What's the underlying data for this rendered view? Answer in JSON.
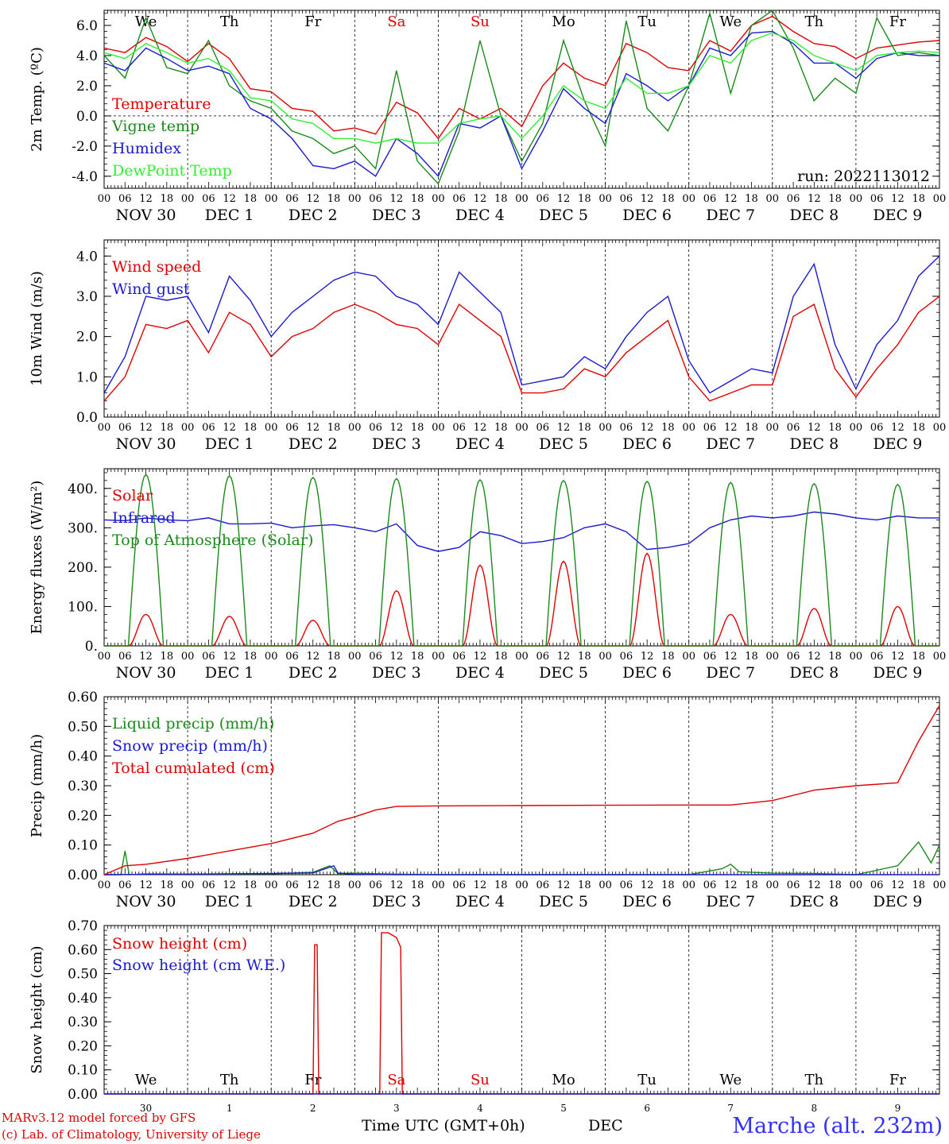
{
  "footer": {
    "model": "MARv3.12 model forced by GFS",
    "credit": "(c) Lab. of Climatology, University of Liege",
    "time_label": "Time UTC (GMT+0h)",
    "month_label": "DEC",
    "station": "Marche (alt. 232m)"
  },
  "axis_common": {
    "hour_ticks": [
      "00",
      "06",
      "12",
      "18"
    ],
    "date_labels": [
      "NOV 30",
      "DEC  1",
      "DEC  2",
      "DEC  3",
      "DEC  4",
      "DEC  5",
      "DEC  6",
      "DEC  7",
      "DEC  8",
      "DEC  9"
    ],
    "weekdays": [
      "We",
      "Th",
      "Fr",
      "Sa",
      "Su",
      "Mo",
      "Tu",
      "We",
      "Th",
      "Fr"
    ],
    "weekday_colors": [
      "#000000",
      "#000000",
      "#000000",
      "#e00000",
      "#e00000",
      "#000000",
      "#000000",
      "#000000",
      "#000000",
      "#000000"
    ],
    "day_numbers": [
      "30",
      "1",
      "2",
      "3",
      "4",
      "5",
      "6",
      "7",
      "8",
      "9"
    ],
    "days": 10
  },
  "chart_data": [
    {
      "id": "temperature",
      "type": "line",
      "ylabel": "2m Temp. (ºC)",
      "ylim": [
        -4.8,
        7.0
      ],
      "yticks": [
        -4.0,
        -2.0,
        0.0,
        2.0,
        4.0,
        6.0
      ],
      "ytick_labels": [
        "-4.0",
        "-2.0",
        "0.0",
        "2.0",
        "4.0",
        "6.0"
      ],
      "zero_line": true,
      "annotation": "run: 2022113012",
      "series": [
        {
          "name": "Temperature",
          "color": "#e00000",
          "x": [
            0,
            0.25,
            0.5,
            0.75,
            1,
            1.25,
            1.5,
            1.75,
            2,
            2.25,
            2.5,
            2.75,
            3,
            3.25,
            3.5,
            3.75,
            4,
            4.25,
            4.5,
            4.75,
            5,
            5.25,
            5.5,
            5.75,
            6,
            6.25,
            6.5,
            6.75,
            7,
            7.25,
            7.5,
            7.75,
            8,
            8.25,
            8.5,
            8.75,
            9,
            9.25,
            9.5,
            9.75,
            10
          ],
          "values": [
            4.5,
            4.2,
            5.2,
            4.6,
            3.6,
            4.8,
            3.8,
            1.8,
            1.6,
            0.5,
            0.3,
            -1.0,
            -0.8,
            -1.2,
            0.9,
            0.2,
            -1.5,
            0.5,
            -0.2,
            0.5,
            -0.7,
            2.0,
            3.5,
            2.5,
            2.0,
            4.8,
            4.2,
            3.2,
            3.0,
            5.0,
            4.3,
            6.0,
            6.6,
            5.6,
            4.8,
            4.6,
            3.8,
            4.5,
            4.7,
            4.9,
            5.0
          ]
        },
        {
          "name": "Vigne temp",
          "color": "#1a8a1a",
          "x": [
            0,
            0.25,
            0.5,
            0.75,
            1,
            1.25,
            1.5,
            1.75,
            2,
            2.25,
            2.5,
            2.75,
            3,
            3.25,
            3.5,
            3.75,
            4,
            4.25,
            4.5,
            4.75,
            5,
            5.25,
            5.5,
            5.75,
            6,
            6.25,
            6.5,
            6.75,
            7,
            7.25,
            7.5,
            7.75,
            8,
            8.25,
            8.5,
            8.75,
            9,
            9.25,
            9.5,
            9.75,
            10
          ],
          "values": [
            4.0,
            2.5,
            6.5,
            3.2,
            2.8,
            5.0,
            2.0,
            1.0,
            0.5,
            -1.0,
            -1.5,
            -2.5,
            -2.0,
            -3.5,
            3.0,
            -3.0,
            -4.5,
            -1.0,
            5.0,
            0.0,
            -3.0,
            -0.5,
            5.0,
            1.0,
            -2.0,
            6.3,
            0.5,
            -1.0,
            2.0,
            6.8,
            1.5,
            6.0,
            7.0,
            4.5,
            1.0,
            2.5,
            1.5,
            6.5,
            4.0,
            4.2,
            4.0
          ]
        },
        {
          "name": "Humidex",
          "color": "#1a1ad0",
          "x": [
            0,
            0.25,
            0.5,
            0.75,
            1,
            1.25,
            1.5,
            1.75,
            2,
            2.25,
            2.5,
            2.75,
            3,
            3.25,
            3.5,
            3.75,
            4,
            4.25,
            4.5,
            4.75,
            5,
            5.25,
            5.5,
            5.75,
            6,
            6.25,
            6.5,
            6.75,
            7,
            7.25,
            7.5,
            7.75,
            8,
            8.25,
            8.5,
            8.75,
            9,
            9.25,
            9.5,
            9.75,
            10
          ],
          "values": [
            3.5,
            3.0,
            4.5,
            3.8,
            3.0,
            3.3,
            2.8,
            0.5,
            -0.2,
            -1.5,
            -3.3,
            -3.5,
            -3.0,
            -4.0,
            -1.5,
            -2.5,
            -4.0,
            -0.5,
            -0.8,
            0.0,
            -3.5,
            -1.0,
            1.8,
            0.5,
            -0.5,
            2.8,
            2.0,
            1.0,
            2.0,
            4.5,
            4.0,
            5.5,
            5.6,
            4.8,
            3.5,
            3.5,
            2.5,
            3.8,
            4.2,
            4.0,
            4.0
          ]
        },
        {
          "name": "DewPoint Temp",
          "color": "#33ee33",
          "x": [
            0,
            0.25,
            0.5,
            0.75,
            1,
            1.25,
            1.5,
            1.75,
            2,
            2.25,
            2.5,
            2.75,
            3,
            3.25,
            3.5,
            3.75,
            4,
            4.25,
            4.5,
            4.75,
            5,
            5.25,
            5.5,
            5.75,
            6,
            6.25,
            6.5,
            6.75,
            7,
            7.25,
            7.5,
            7.75,
            8,
            8.25,
            8.5,
            8.75,
            9,
            9.25,
            9.5,
            9.75,
            10
          ],
          "values": [
            4.2,
            3.8,
            4.8,
            4.2,
            3.5,
            3.8,
            3.0,
            1.2,
            1.0,
            -0.2,
            -0.5,
            -1.5,
            -1.5,
            -1.8,
            -1.5,
            -1.8,
            -1.8,
            -0.5,
            -0.2,
            0.0,
            -1.5,
            0.0,
            2.0,
            1.0,
            0.5,
            2.5,
            1.5,
            1.5,
            2.0,
            4.0,
            3.5,
            5.0,
            5.5,
            5.0,
            4.0,
            3.5,
            3.0,
            4.0,
            4.2,
            4.3,
            4.2
          ]
        }
      ]
    },
    {
      "id": "wind",
      "type": "line",
      "ylabel": "10m Wind (m/s)",
      "ylim": [
        0.0,
        4.4
      ],
      "yticks": [
        0.0,
        1.0,
        2.0,
        3.0,
        4.0
      ],
      "ytick_labels": [
        "0.0",
        "1.0",
        "2.0",
        "3.0",
        "4.0"
      ],
      "series": [
        {
          "name": "Wind speed",
          "color": "#e00000",
          "x": [
            0,
            0.25,
            0.5,
            0.75,
            1,
            1.25,
            1.5,
            1.75,
            2,
            2.25,
            2.5,
            2.75,
            3,
            3.25,
            3.5,
            3.75,
            4,
            4.25,
            4.5,
            4.75,
            5,
            5.25,
            5.5,
            5.75,
            6,
            6.25,
            6.5,
            6.75,
            7,
            7.25,
            7.5,
            7.75,
            8,
            8.25,
            8.5,
            8.75,
            9,
            9.25,
            9.5,
            9.75,
            10
          ],
          "values": [
            0.4,
            1.0,
            2.3,
            2.2,
            2.4,
            1.6,
            2.6,
            2.3,
            1.5,
            2.0,
            2.2,
            2.6,
            2.8,
            2.6,
            2.3,
            2.2,
            1.8,
            2.8,
            2.4,
            2.0,
            0.6,
            0.6,
            0.7,
            1.2,
            1.0,
            1.6,
            2.0,
            2.4,
            1.0,
            0.4,
            0.6,
            0.8,
            0.8,
            2.5,
            2.8,
            1.2,
            0.5,
            1.2,
            1.8,
            2.6,
            3.0
          ]
        },
        {
          "name": "Wind gust",
          "color": "#1a1ad0",
          "x": [
            0,
            0.25,
            0.5,
            0.75,
            1,
            1.25,
            1.5,
            1.75,
            2,
            2.25,
            2.5,
            2.75,
            3,
            3.25,
            3.5,
            3.75,
            4,
            4.25,
            4.5,
            4.75,
            5,
            5.25,
            5.5,
            5.75,
            6,
            6.25,
            6.5,
            6.75,
            7,
            7.25,
            7.5,
            7.75,
            8,
            8.25,
            8.5,
            8.75,
            9,
            9.25,
            9.5,
            9.75,
            10
          ],
          "values": [
            0.6,
            1.5,
            3.0,
            2.9,
            3.0,
            2.1,
            3.5,
            2.9,
            2.0,
            2.6,
            3.0,
            3.4,
            3.6,
            3.5,
            3.0,
            2.8,
            2.3,
            3.6,
            3.1,
            2.6,
            0.8,
            0.9,
            1.0,
            1.5,
            1.2,
            2.0,
            2.6,
            3.0,
            1.4,
            0.6,
            0.9,
            1.2,
            1.1,
            3.0,
            3.8,
            1.8,
            0.7,
            1.8,
            2.4,
            3.5,
            4.0
          ]
        }
      ]
    },
    {
      "id": "energy",
      "type": "line",
      "ylabel": "Energy fluxes (W/m²)",
      "ylim": [
        0,
        450
      ],
      "yticks": [
        0,
        100,
        200,
        300,
        400
      ],
      "ytick_labels": [
        "0.",
        "100.",
        "200.",
        "300.",
        "400."
      ],
      "series": [
        {
          "name": "Solar",
          "color": "#e00000",
          "day_peaks": [
            80,
            75,
            65,
            140,
            205,
            215,
            235,
            80,
            95,
            100
          ]
        },
        {
          "name": "Infrared",
          "color": "#1a1ad0",
          "x": [
            0,
            0.25,
            0.5,
            0.75,
            1,
            1.25,
            1.5,
            1.75,
            2,
            2.25,
            2.5,
            2.75,
            3,
            3.25,
            3.5,
            3.75,
            4,
            4.25,
            4.5,
            4.75,
            5,
            5.25,
            5.5,
            5.75,
            6,
            6.25,
            6.5,
            6.75,
            7,
            7.25,
            7.5,
            7.75,
            8,
            8.25,
            8.5,
            8.75,
            9,
            9.25,
            9.5,
            9.75,
            10
          ],
          "values": [
            320,
            318,
            325,
            320,
            318,
            325,
            310,
            310,
            312,
            300,
            305,
            308,
            300,
            290,
            310,
            255,
            240,
            250,
            290,
            280,
            260,
            265,
            275,
            300,
            310,
            290,
            245,
            250,
            260,
            300,
            320,
            330,
            325,
            330,
            340,
            335,
            325,
            320,
            330,
            325,
            325
          ]
        },
        {
          "name": "Top of Atmosphere (Solar)",
          "color": "#1a8a1a",
          "day_peaks": [
            435,
            432,
            428,
            425,
            422,
            420,
            418,
            415,
            412,
            410
          ]
        }
      ]
    },
    {
      "id": "precip",
      "type": "line",
      "ylabel": "Precip (mm/h)",
      "ylim": [
        0.0,
        0.6
      ],
      "yticks": [
        0.0,
        0.1,
        0.2,
        0.3,
        0.4,
        0.5,
        0.6
      ],
      "ytick_labels": [
        "0.00",
        "0.10",
        "0.20",
        "0.30",
        "0.40",
        "0.50",
        "0.60"
      ],
      "series": [
        {
          "name": "Liquid precip (mm/h)",
          "color": "#1a8a1a",
          "x": [
            0,
            0.2,
            0.25,
            0.3,
            0.5,
            1,
            1.5,
            2,
            2.5,
            2.7,
            2.8,
            3,
            3.5,
            4,
            5,
            6,
            7,
            7.4,
            7.5,
            7.6,
            8,
            8.5,
            9,
            9.5,
            9.75,
            9.9,
            10
          ],
          "values": [
            0,
            0,
            0.08,
            0,
            0.003,
            0.002,
            0.002,
            0.003,
            0.008,
            0.03,
            0.004,
            0.005,
            0.002,
            0,
            0,
            0,
            0,
            0.02,
            0.035,
            0.01,
            0.005,
            0.004,
            0,
            0.03,
            0.11,
            0.04,
            0.1
          ]
        },
        {
          "name": "Snow precip (mm/h)",
          "color": "#1a1ad0",
          "x": [
            0,
            1,
            2,
            2.5,
            2.75,
            2.8,
            3,
            3.5,
            4,
            10
          ],
          "values": [
            0,
            0.002,
            0.004,
            0.006,
            0.03,
            0.005,
            0.002,
            0,
            0,
            0
          ]
        },
        {
          "name": "Total cumulated (cm)",
          "color": "#e00000",
          "x": [
            0,
            0.25,
            0.5,
            1,
            1.5,
            2,
            2.5,
            2.8,
            3,
            3.25,
            3.5,
            4,
            5,
            6,
            7,
            7.5,
            8,
            8.5,
            9,
            9.5,
            9.75,
            10
          ],
          "values": [
            0,
            0.03,
            0.035,
            0.055,
            0.08,
            0.105,
            0.14,
            0.18,
            0.195,
            0.218,
            0.23,
            0.232,
            0.233,
            0.234,
            0.235,
            0.235,
            0.25,
            0.285,
            0.3,
            0.31,
            0.45,
            0.57
          ]
        }
      ]
    },
    {
      "id": "snow",
      "type": "line",
      "ylabel": "Snow height (cm)",
      "ylim": [
        0.0,
        0.7
      ],
      "yticks": [
        0.0,
        0.1,
        0.2,
        0.3,
        0.4,
        0.5,
        0.6,
        0.7
      ],
      "ytick_labels": [
        "0.00",
        "0.10",
        "0.20",
        "0.30",
        "0.40",
        "0.50",
        "0.60",
        "0.70"
      ],
      "series": [
        {
          "name": "Snow height (cm)",
          "color": "#e00000",
          "x": [
            0,
            2.5,
            2.52,
            2.55,
            2.57,
            3.3,
            3.32,
            3.4,
            3.45,
            3.5,
            3.55,
            3.57,
            10
          ],
          "values": [
            0,
            0,
            0.62,
            0.62,
            0,
            0,
            0.67,
            0.67,
            0.66,
            0.65,
            0.61,
            0,
            0
          ]
        },
        {
          "name": "Snow height (cm W.E.)",
          "color": "#1a1ad0",
          "x": [
            0,
            10
          ],
          "values": [
            0,
            0
          ]
        }
      ]
    }
  ]
}
